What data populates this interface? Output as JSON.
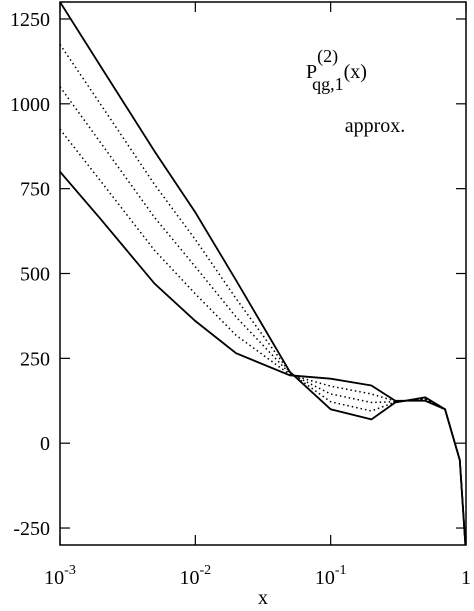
{
  "chart_data": {
    "type": "line",
    "title": {
      "symbol": "P",
      "superscript": "(2)",
      "subscript": "qg,1",
      "argument": "(x)"
    },
    "annotation": "approx.",
    "x_label": "x",
    "log_x": true,
    "x": [
      0.001,
      0.002,
      0.005,
      0.01,
      0.02,
      0.05,
      0.1,
      0.2,
      0.3,
      0.5,
      0.7,
      0.9,
      0.99
    ],
    "series": [
      {
        "style": "solid",
        "color": "#000000",
        "values": [
          1300,
          1110,
          860,
          680,
          480,
          210,
          100,
          70,
          120,
          135,
          100,
          -50,
          -300
        ]
      },
      {
        "style": "dotted",
        "color": "#000000",
        "values": [
          1175,
          998,
          762,
          600,
          426,
          208,
          122,
          95,
          121,
          132,
          100,
          -50,
          -300
        ]
      },
      {
        "style": "dotted",
        "color": "#000000",
        "values": [
          1050,
          885,
          665,
          520,
          372,
          205,
          145,
          120,
          122,
          130,
          100,
          -50,
          -300
        ]
      },
      {
        "style": "dotted",
        "color": "#000000",
        "values": [
          925,
          772,
          568,
          440,
          318,
          202,
          168,
          145,
          124,
          128,
          100,
          -50,
          -300
        ]
      },
      {
        "style": "solid",
        "color": "#000000",
        "values": [
          800,
          660,
          470,
          360,
          265,
          200,
          190,
          170,
          125,
          125,
          100,
          -50,
          -300
        ]
      }
    ],
    "xlim": [
      0.001,
      1
    ],
    "xticks": [
      {
        "value": 0.001,
        "label": "10-3"
      },
      {
        "value": 0.01,
        "label": "10-2"
      },
      {
        "value": 0.1,
        "label": "10-1"
      },
      1
    ],
    "ylim": [
      -300,
      1300
    ],
    "yticks": [
      -250,
      0,
      250,
      500,
      750,
      1000,
      1250
    ]
  }
}
